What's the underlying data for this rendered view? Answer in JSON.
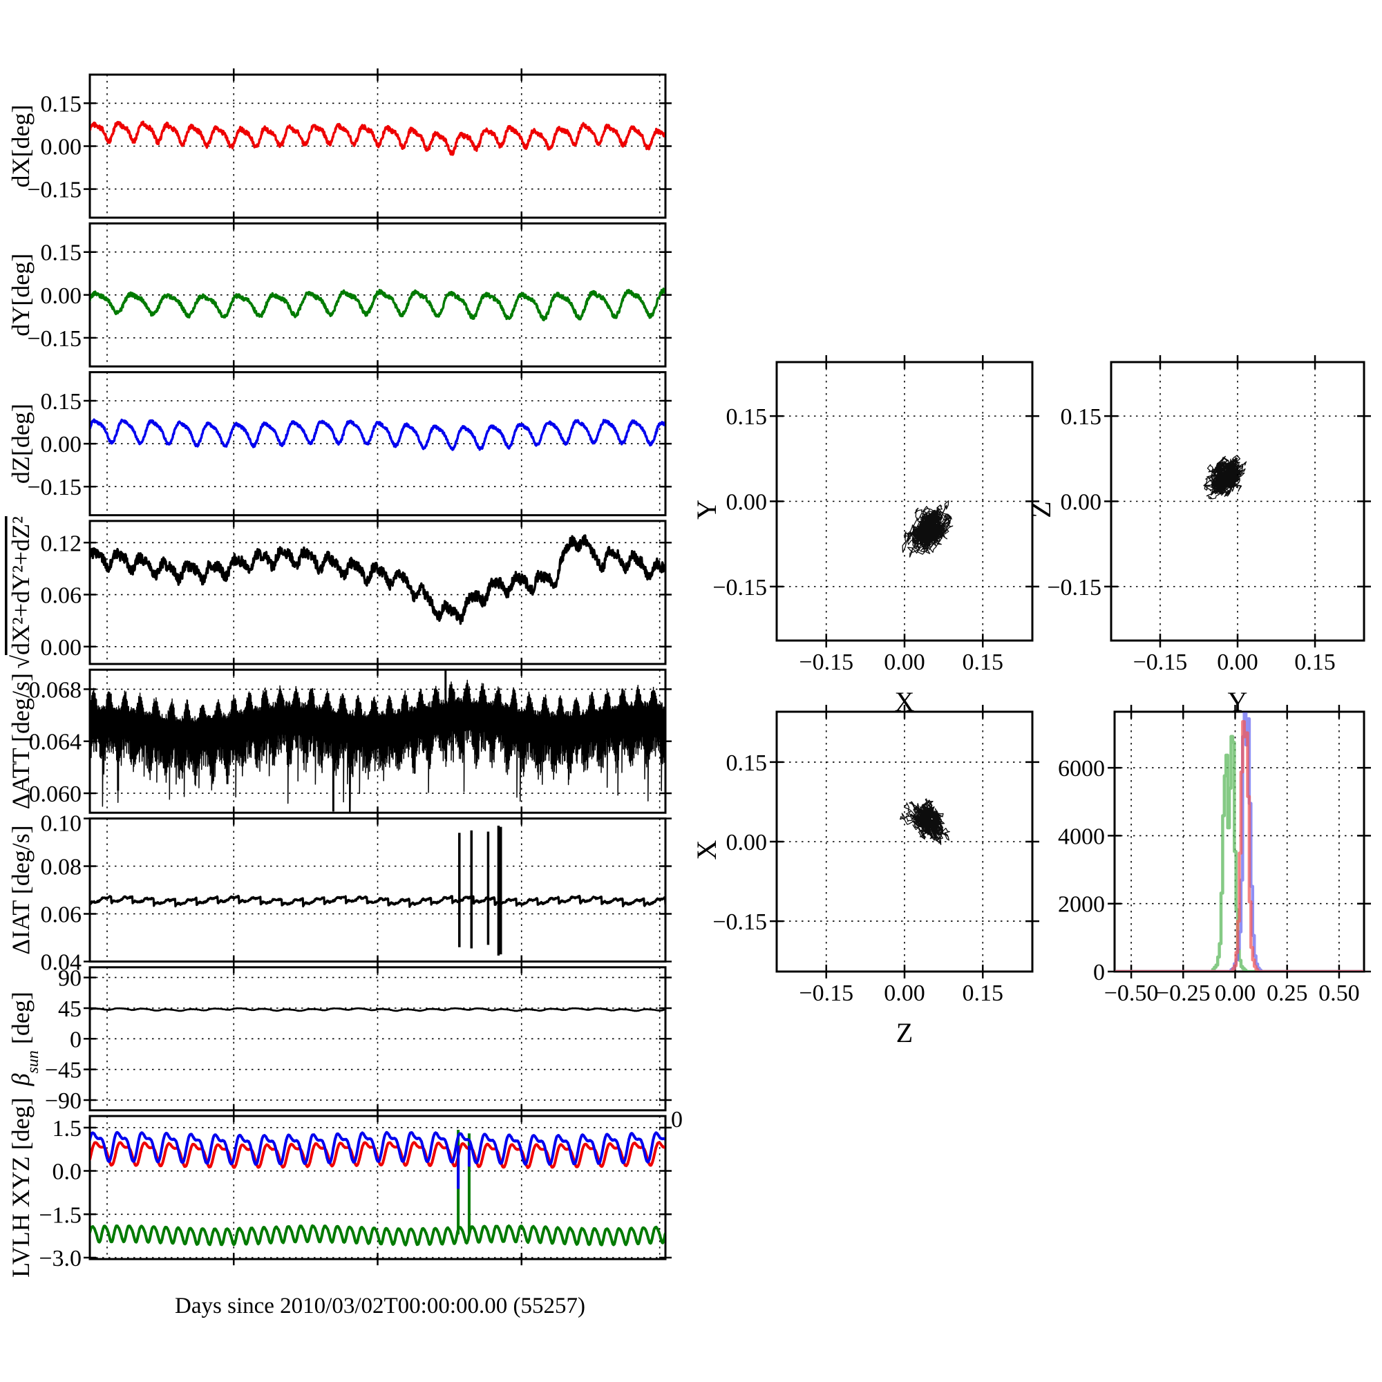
{
  "figure": {
    "background": "#ffffff",
    "frame_color": "#000000",
    "grid_style": "dotted",
    "xlabel": "Days since 2010/03/02T00:00:00.00 (55257)",
    "x_extra_tick_labels": [
      "0",
      "0"
    ]
  },
  "colors": {
    "red": "#ee0000",
    "green": "#007a00",
    "blue": "#0000ee",
    "black": "#000000",
    "hist_red": "#f05a5a",
    "hist_green": "#5cb85c",
    "hist_blue": "#6a6af0"
  },
  "chart_data": [
    {
      "key": "dX",
      "type": "line",
      "slot": "left-0",
      "ylabel": "dX[deg]",
      "ylim": [
        -0.25,
        0.25
      ],
      "yticks": [
        0.15,
        0.0,
        -0.15
      ],
      "ytick_labels": [
        "0.15",
        "0.00",
        "−0.15"
      ],
      "series": [
        {
          "name": "dX",
          "color": "#ee0000",
          "gen": {
            "kind": "osc",
            "mean": 0.048,
            "amp": 0.028,
            "cycles": 23.5,
            "h2": 0.35,
            "noise": 0.0075,
            "slow": [
              0.008,
              2.7,
              0.4
            ],
            "ampgrow": 0,
            "dips": [
              [
                0.55,
                0.25,
                -0.012
              ],
              [
                0.63,
                0.03,
                -0.016
              ],
              [
                0.79,
                0.028,
                -0.022
              ],
              [
                0.985,
                0.02,
                -0.01
              ]
            ]
          }
        }
      ],
      "summary": "red residual ~0.05 deg oscillation, dips to -0.04 near t=0.63,0.79"
    },
    {
      "key": "dY",
      "type": "line",
      "slot": "left-1",
      "ylabel": "dY[deg]",
      "ylim": [
        -0.25,
        0.25
      ],
      "yticks": [
        0.15,
        0.0,
        -0.15
      ],
      "ytick_labels": [
        "0.15",
        "0.00",
        "−0.15"
      ],
      "series": [
        {
          "name": "dY",
          "color": "#007a00",
          "gen": {
            "kind": "osc",
            "mean": -0.028,
            "amp": 0.03,
            "cycles": 16.2,
            "h2": 0.3,
            "noise": 0.007,
            "slow": [
              0.006,
              1.9,
              2.0
            ],
            "ampgrow": 0.35,
            "dips": []
          }
        }
      ],
      "summary": "green oscillation about -0.03 deg, peaks ~0.02, troughs ~-0.09"
    },
    {
      "key": "dZ",
      "type": "line",
      "slot": "left-2",
      "ylabel": "dZ[deg]",
      "ylim": [
        -0.25,
        0.25
      ],
      "yticks": [
        0.15,
        0.0,
        -0.15
      ],
      "ytick_labels": [
        "0.15",
        "0.00",
        "−0.15"
      ],
      "series": [
        {
          "name": "dZ",
          "color": "#0000ee",
          "gen": {
            "kind": "osc",
            "mean": 0.042,
            "amp": 0.036,
            "cycles": 20.3,
            "h2": 0.25,
            "noise": 0.005,
            "slow": [
              0.006,
              2.4,
              1.0
            ],
            "ampgrow": 0,
            "dips": [
              [
                0.62,
                0.1,
                -0.012
              ]
            ]
          }
        }
      ],
      "summary": "blue oscillation about 0.04 deg between ~0.00 and ~0.09"
    },
    {
      "key": "dTotal",
      "type": "line",
      "slot": "left-3",
      "ylabel": "√dX²+dY²+dZ²",
      "ylim": [
        -0.02,
        0.145
      ],
      "yticks": [
        0.12,
        0.06,
        0.0
      ],
      "ytick_labels": [
        "0.12",
        "0.06",
        "0.00"
      ],
      "series": [
        {
          "name": "total",
          "color": "#000000",
          "gen": {
            "kind": "osc",
            "mean": 0.0915,
            "amp": 0.0075,
            "cycles": 24.5,
            "h2": 0.4,
            "noise": 0.006,
            "slow": [
              0.0085,
              3.1,
              1.2
            ],
            "ampgrow": 0,
            "clampMin": 0.022,
            "dips": [
              [
                0.625,
                0.045,
                -0.055
              ],
              [
                0.72,
                0.06,
                -0.018
              ],
              [
                0.845,
                0.018,
                0.042
              ],
              [
                0.905,
                0.03,
                0.012
              ],
              [
                1.0,
                0.04,
                -0.012
              ],
              [
                0.3,
                0.2,
                0.004
              ]
            ]
          }
        }
      ],
      "summary": "black magnitude ~0.09 deg, dip to ~0.027 at t=0.63, peak ~0.135 at t=0.85"
    },
    {
      "key": "dATT",
      "type": "line",
      "slot": "left-4",
      "ylabel": "ΔATT [deg/s]",
      "ylim": [
        0.0585,
        0.0695
      ],
      "yticks": [
        0.068,
        0.064,
        0.06
      ],
      "ytick_labels": [
        "0.068",
        "0.064",
        "0.060"
      ],
      "series": [
        {
          "name": "dATT",
          "color": "#000000",
          "gen": {
            "kind": "band",
            "mean": 0.065,
            "carrier_cycles": 37,
            "spikes_down": [
              [
                0.049,
                0.0602
              ],
              [
                0.239,
                0.0607
              ],
              [
                0.423,
                0.0586
              ]
            ],
            "spikes_up": [
              [
                0.618,
                0.0697
              ]
            ]
          }
        }
      ],
      "summary": "dense black band 0.063-0.067 deg/s, down-spikes to ~0.059-0.061, up-spike ~0.070"
    },
    {
      "key": "dIAT",
      "type": "line",
      "slot": "left-5",
      "ylabel": "ΔIAT [deg/s]",
      "ylim": [
        0.04,
        0.1
      ],
      "yticks": [
        0.1,
        0.08,
        0.06,
        0.04
      ],
      "ytick_labels": [
        "0.10",
        "0.08",
        "0.06",
        "0.04"
      ],
      "series": [
        {
          "name": "dIAT",
          "color": "#000000",
          "gen": {
            "kind": "saw",
            "base": 0.0638,
            "height": 0.003,
            "teeth": 27,
            "noise": 0.0003,
            "vspikes": [
              [
                0.642,
                0.046,
                0.094
              ],
              [
                0.663,
                0.0455,
                0.095
              ],
              [
                0.692,
                0.047,
                0.0945
              ],
              [
                0.71,
                0.0425,
                0.097
              ],
              [
                0.714,
                0.043,
                0.0965
              ]
            ]
          }
        }
      ],
      "summary": "black sawtooth ~0.064-0.067 deg/s with vertical glitch spikes 0.043-0.097 near t=0.64-0.71"
    },
    {
      "key": "beta_sun",
      "type": "line",
      "slot": "left-6",
      "ylabel": "β_sun [deg]",
      "ylim": [
        -105,
        105
      ],
      "yticks": [
        90,
        45,
        0,
        -45,
        -90
      ],
      "ytick_labels": [
        "90",
        "45",
        "0",
        "−45",
        "−90"
      ],
      "xtick_labels": [
        "0",
        "0"
      ],
      "series": [
        {
          "name": "beta",
          "color": "#000000",
          "gen": {
            "kind": "osc",
            "mean": 43.0,
            "amp": 1.1,
            "cycles": 24,
            "h2": 0.2,
            "noise": 0.25,
            "slow": [
              0.8,
              5,
              0
            ],
            "ampgrow": 0,
            "dips": []
          }
        }
      ],
      "summary": "nearly constant sun beta angle ~43 deg with small ripple"
    },
    {
      "key": "lvlh",
      "type": "line",
      "slot": "left-7",
      "ylabel": "LVLH XYZ [deg]",
      "ylim": [
        -3.05,
        1.9
      ],
      "yticks": [
        1.5,
        0.0,
        -1.5,
        -3.0
      ],
      "ytick_labels": [
        "1.5",
        "0.0",
        "−1.5",
        "−3.0"
      ],
      "series": [
        {
          "name": "X",
          "color": "#ee0000",
          "gen": {
            "kind": "osc",
            "mean": 0.63,
            "amp": 0.33,
            "cycles": 23.5,
            "phase": -0.7,
            "h2": 0.45,
            "h2ph": 1.0,
            "noise": 0.008,
            "slow": [
              0.04,
              2,
              1.3
            ],
            "ampgrow": 0,
            "dips": []
          }
        },
        {
          "name": "Y",
          "color": "#007a00",
          "gen": {
            "kind": "osc",
            "mean": -2.2,
            "amp": 0.27,
            "cycles": 47,
            "h2": 0.15,
            "noise": 0.012,
            "slow": [
              0.05,
              3,
              0.5
            ],
            "ampgrow": 0,
            "dips": [],
            "vspikes": [
              [
                0.64,
                1.42
              ],
              [
                0.659,
                1.3
              ]
            ]
          }
        },
        {
          "name": "Z",
          "color": "#0000ee",
          "gen": {
            "kind": "osc",
            "mean": 0.88,
            "amp": 0.42,
            "cycles": 23.5,
            "phase": 0.0,
            "h2": 0.45,
            "h2ph": 1.0,
            "noise": 0.01,
            "slow": [
              0.05,
              2,
              1
            ],
            "ampgrow": 0,
            "dips": [],
            "vspikes": [
              [
                0.64,
                -0.62
              ],
              [
                0.659,
                0.15
              ]
            ]
          }
        }
      ],
      "summary": "blue ~0.4-1.35, red ~0.3-1.05 orbital scallops; green ~-2.5..-1.9 fast wave; two green glitch spikes to ~1.4 near t=0.64,0.66"
    },
    {
      "key": "scatter_YX",
      "type": "scatter",
      "slot": "right-0",
      "xlabel": "X",
      "ylabel": "Y",
      "xlim": [
        -0.245,
        0.245
      ],
      "ylim": [
        -0.245,
        0.245
      ],
      "xticks": [
        -0.15,
        0.0,
        0.15
      ],
      "xtick_labels": [
        "−0.15",
        "0.00",
        "0.15"
      ],
      "yticks": [
        0.15,
        0.0,
        -0.15
      ],
      "ytick_labels": [
        "0.15",
        "0.00",
        "−0.15"
      ],
      "cloud": {
        "cx": 0.048,
        "cy": -0.047,
        "sx": 0.034,
        "sy": 0.04,
        "corr": 0.35,
        "n": 1700,
        "seed": 11
      },
      "summary": "black trajectory cloud centered near (0.05, -0.05)"
    },
    {
      "key": "scatter_ZY",
      "type": "scatter",
      "slot": "right-1",
      "xlabel": "Y",
      "ylabel": "Z",
      "xlim": [
        -0.245,
        0.245
      ],
      "ylim": [
        -0.245,
        0.245
      ],
      "xticks": [
        -0.15,
        0.0,
        0.15
      ],
      "xtick_labels": [
        "−0.15",
        "0.00",
        "0.15"
      ],
      "yticks": [
        0.15,
        0.0,
        -0.15
      ],
      "ytick_labels": [
        "0.15",
        "0.00",
        "−0.15"
      ],
      "cloud": {
        "cx": -0.022,
        "cy": 0.044,
        "sx": 0.03,
        "sy": 0.026,
        "corr": 0.3,
        "n": 1900,
        "seed": 22
      },
      "summary": "black trajectory cloud centered near (-0.03, 0.05)"
    },
    {
      "key": "scatter_XZ",
      "type": "scatter",
      "slot": "right-2",
      "xlabel": "Z",
      "ylabel": "X",
      "xlim": [
        -0.245,
        0.245
      ],
      "ylim": [
        -0.245,
        0.245
      ],
      "xticks": [
        -0.15,
        0.0,
        0.15
      ],
      "xtick_labels": [
        "−0.15",
        "0.00",
        "0.15"
      ],
      "yticks": [
        0.15,
        0.0,
        -0.15
      ],
      "ytick_labels": [
        "0.15",
        "0.00",
        "−0.15"
      ],
      "cloud": {
        "cx": 0.042,
        "cy": 0.042,
        "sx": 0.03,
        "sy": 0.03,
        "corr": -0.4,
        "n": 1500,
        "seed": 33
      },
      "summary": "black trajectory cloud centered near (0.04, 0.04), tilted"
    },
    {
      "key": "histogram",
      "type": "histogram",
      "slot": "right-3",
      "xlim": [
        -0.58,
        0.62
      ],
      "ylim": [
        0,
        7650
      ],
      "xticks": [
        -0.5,
        -0.25,
        0.0,
        0.25,
        0.5
      ],
      "xtick_labels": [
        "−0.50",
        "−0.25",
        "0.00",
        "0.25",
        "0.50"
      ],
      "yticks": [
        6000,
        4000,
        2000,
        0
      ],
      "ytick_labels": [
        "6000",
        "4000",
        "2000",
        "0"
      ],
      "bin_width": 0.008,
      "series": [
        {
          "name": "Y",
          "color": "#5cb85c",
          "seed": 5,
          "components": [
            {
              "center": -0.046,
              "sigma": 0.012,
              "peak": 4800
            },
            {
              "center": -0.011,
              "sigma": 0.011,
              "peak": 5600
            },
            {
              "center": -0.03,
              "sigma": 0.03,
              "peak": 1300
            }
          ]
        },
        {
          "name": "Z",
          "color": "#6a6af0",
          "seed": 6,
          "components": [
            {
              "center": 0.046,
              "sigma": 0.01,
              "peak": 5400
            },
            {
              "center": 0.067,
              "sigma": 0.011,
              "peak": 4300
            },
            {
              "center": 0.051,
              "sigma": 0.026,
              "peak": 1500
            }
          ]
        },
        {
          "name": "X",
          "color": "#f05a5a",
          "seed": 7,
          "components": [
            {
              "center": 0.037,
              "sigma": 0.011,
              "peak": 5400
            },
            {
              "center": 0.057,
              "sigma": 0.01,
              "peak": 4600
            },
            {
              "center": 0.047,
              "sigma": 0.024,
              "peak": 1200
            }
          ]
        }
      ],
      "summary": "overlapping step histograms: green peak ~6900 near -0.01, red ~7000 near 0.04, blue ~7400 near 0.05"
    }
  ]
}
